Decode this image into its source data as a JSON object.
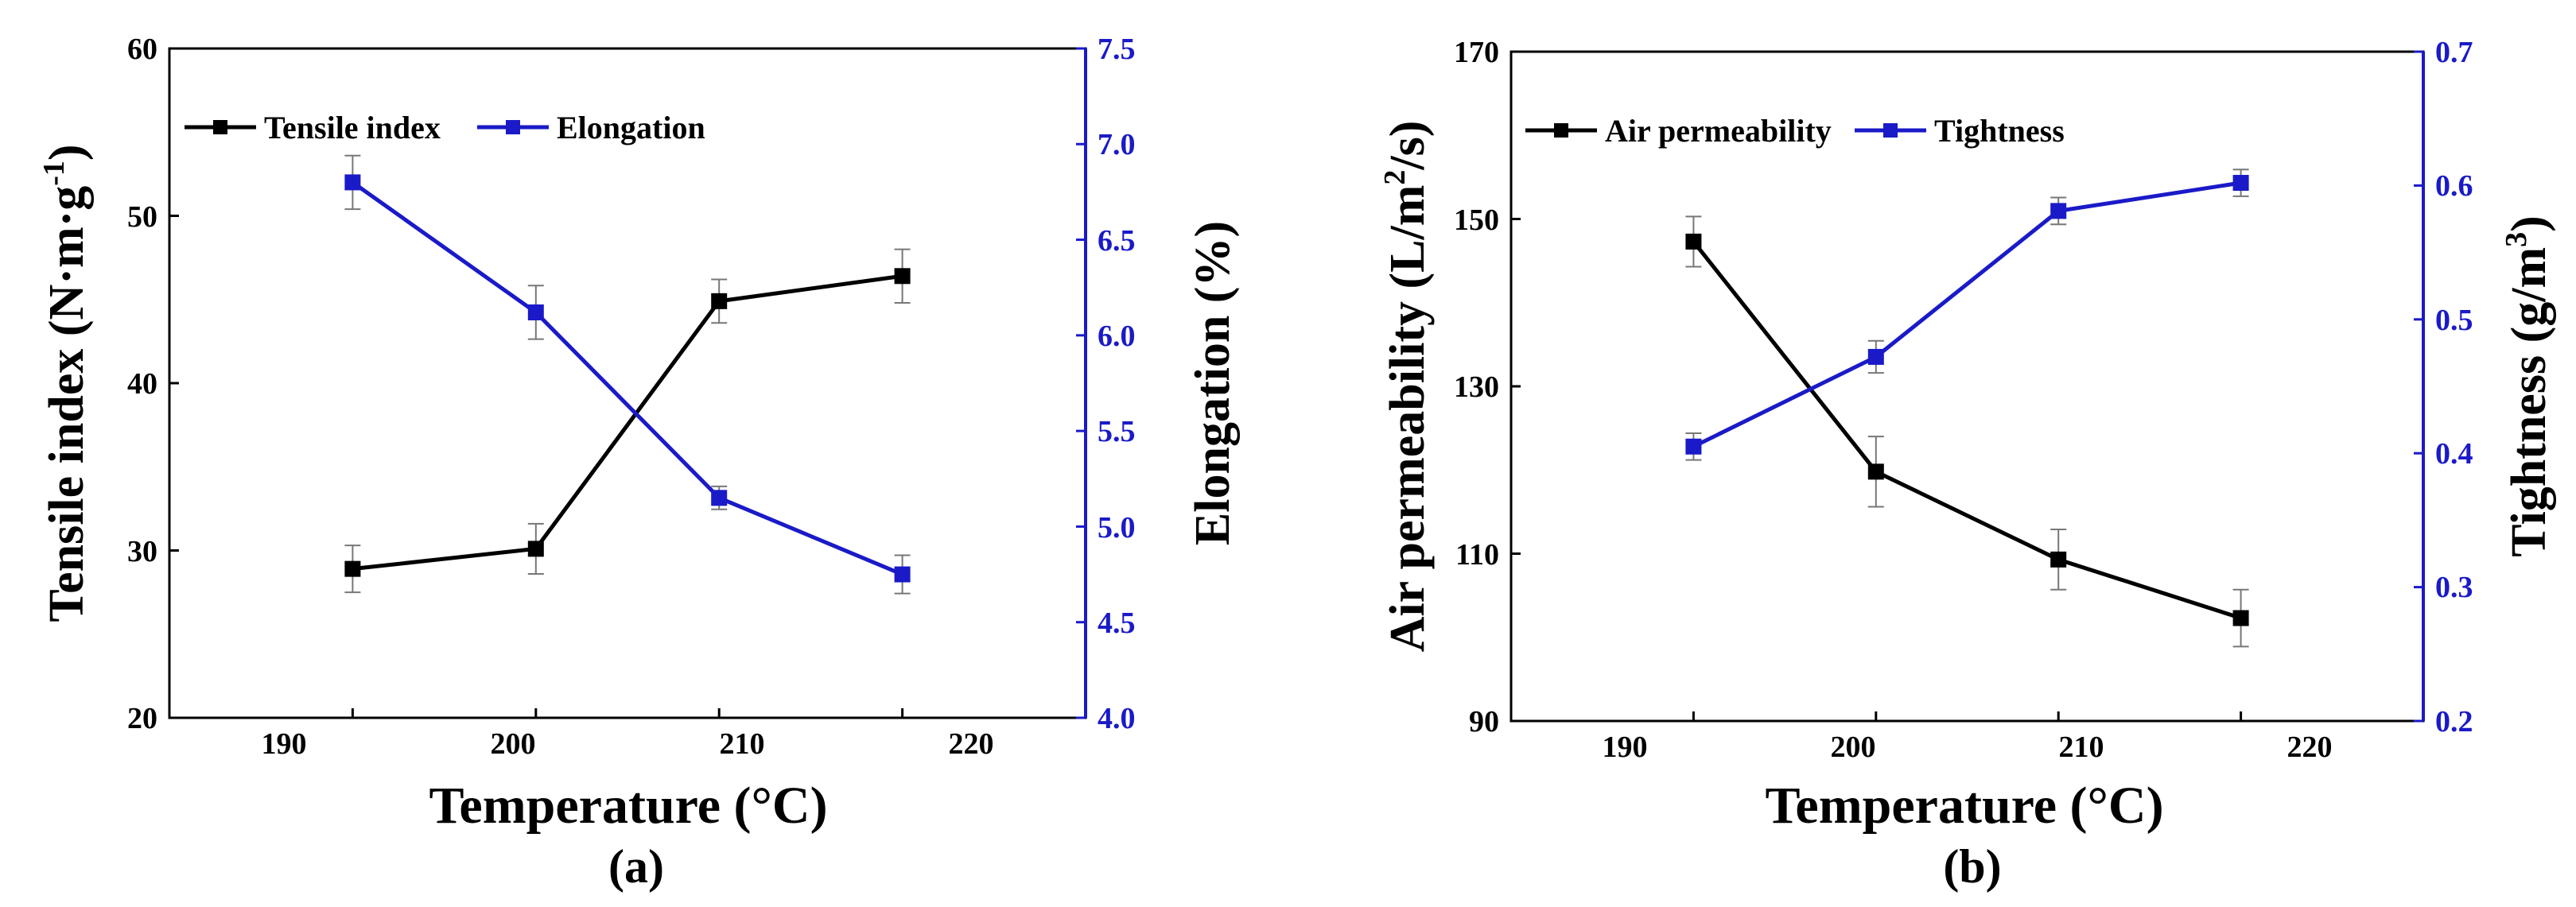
{
  "chart_data": [
    {
      "type": "line",
      "panel_label": "(a)",
      "x": [
        190,
        200,
        210,
        220
      ],
      "xlabel": "Temperature (°C)",
      "xlim": [
        180,
        230
      ],
      "xticks": [
        "190",
        "200",
        "210",
        "220"
      ],
      "left_axis": {
        "label_main": "Tensile index (N·m·g",
        "label_sup": "-1",
        "label_close": ")",
        "ylim": [
          20,
          60
        ],
        "ticks": [
          "20",
          "30",
          "40",
          "50",
          "60"
        ],
        "color": "#000000"
      },
      "right_axis": {
        "label": "Elongation (%)",
        "ylim": [
          4.0,
          7.5
        ],
        "ticks": [
          "4.0",
          "4.5",
          "5.0",
          "5.5",
          "6.0",
          "6.5",
          "7.0",
          "7.5"
        ],
        "color": "#1a1ac8"
      },
      "series": [
        {
          "name": "Tensile index",
          "axis": "left",
          "color": "#000000",
          "values": [
            28.9,
            30.1,
            44.9,
            46.4
          ],
          "errors": [
            1.4,
            1.5,
            1.3,
            1.6
          ]
        },
        {
          "name": "Elongation",
          "axis": "right",
          "color": "#1a1ac8",
          "values": [
            6.8,
            6.12,
            5.15,
            4.75
          ],
          "errors": [
            0.14,
            0.14,
            0.06,
            0.1
          ]
        }
      ],
      "legend": [
        "Tensile index",
        "Elongation"
      ],
      "legend_position": "top-left"
    },
    {
      "type": "line",
      "panel_label": "(b)",
      "x": [
        190,
        200,
        210,
        220
      ],
      "xlabel": "Temperature (°C)",
      "xlim": [
        180,
        230
      ],
      "xticks": [
        "190",
        "200",
        "210",
        "220"
      ],
      "left_axis": {
        "label_main": "Air permeability (L/m",
        "label_sup": "2",
        "label_close": "/s)",
        "ylim": [
          90,
          170
        ],
        "ticks": [
          "90",
          "110",
          "130",
          "150",
          "170"
        ],
        "color": "#000000"
      },
      "right_axis": {
        "label_main": "Tightness (g/m",
        "label_sup": "3",
        "label_close": ")",
        "ylim": [
          0.2,
          0.7
        ],
        "ticks": [
          "0.2",
          "0.3",
          "0.4",
          "0.5",
          "0.6",
          "0.7"
        ],
        "color": "#1a1ac8"
      },
      "series": [
        {
          "name": "Air permeability",
          "axis": "left",
          "color": "#000000",
          "values": [
            147.3,
            119.8,
            109.3,
            102.3
          ],
          "errors": [
            3.0,
            4.2,
            3.6,
            3.4
          ]
        },
        {
          "name": "Tightness",
          "axis": "right",
          "color": "#1a1ac8",
          "values": [
            0.405,
            0.472,
            0.581,
            0.602
          ],
          "errors": [
            0.01,
            0.012,
            0.01,
            0.01
          ]
        }
      ],
      "legend": [
        "Air permeability",
        "Tightness"
      ],
      "legend_position": "top-left"
    }
  ]
}
